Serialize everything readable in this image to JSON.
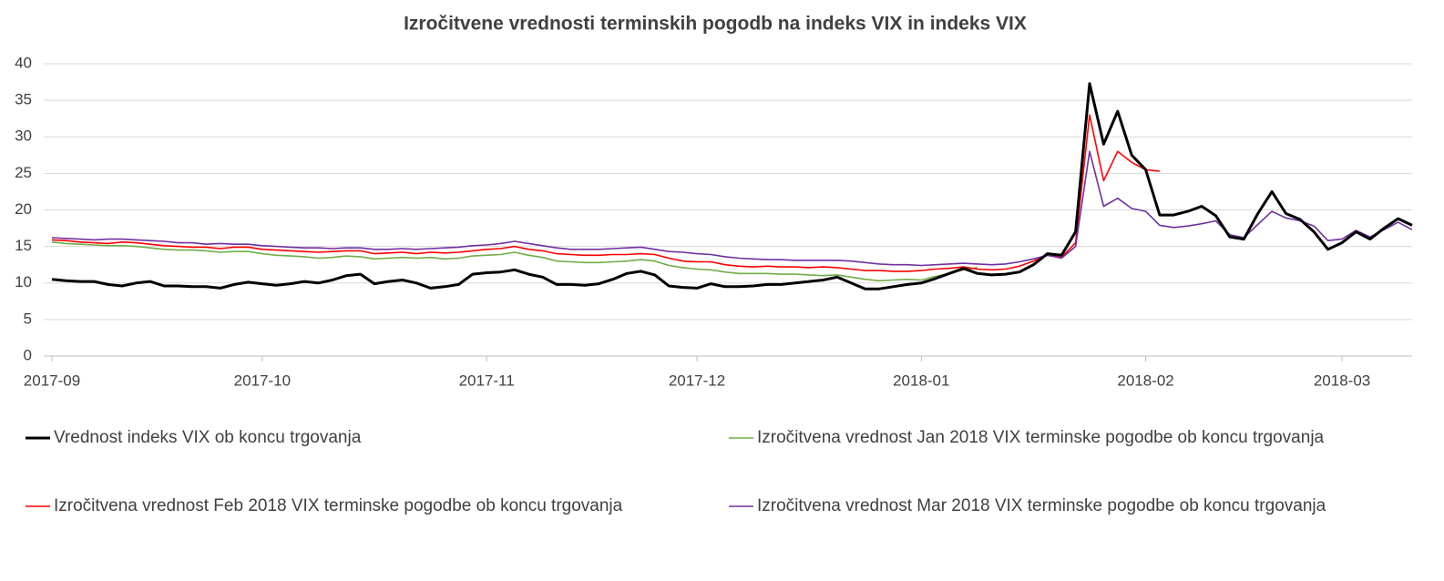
{
  "chart_data": {
    "type": "line",
    "title": "Izročitvene vrednosti terminskih pogodb na indeks VIX in indeks VIX",
    "categories": [
      "2017-09",
      null,
      null,
      null,
      null,
      null,
      null,
      null,
      null,
      null,
      null,
      null,
      null,
      null,
      null,
      "2017-10",
      null,
      null,
      null,
      null,
      null,
      null,
      null,
      null,
      null,
      null,
      null,
      null,
      null,
      null,
      null,
      "2017-11",
      null,
      null,
      null,
      null,
      null,
      null,
      null,
      null,
      null,
      null,
      null,
      null,
      null,
      null,
      "2017-12",
      null,
      null,
      null,
      null,
      null,
      null,
      null,
      null,
      null,
      null,
      null,
      null,
      null,
      null,
      null,
      "2018-01",
      null,
      null,
      null,
      null,
      null,
      null,
      null,
      null,
      null,
      null,
      null,
      null,
      null,
      null,
      null,
      "2018-02",
      null,
      null,
      null,
      null,
      null,
      null,
      null,
      null,
      null,
      null,
      null,
      null,
      null,
      "2018-03",
      null,
      null,
      null,
      null,
      null
    ],
    "ylim": [
      0,
      40
    ],
    "yticks": [
      0,
      5,
      10,
      15,
      20,
      25,
      30,
      35,
      40
    ],
    "grid": true,
    "legend": "bottom",
    "series": [
      {
        "name": "Vrednost indeks VIX ob koncu trgovanja",
        "color": "#000000",
        "values": [
          10.5,
          10.3,
          10.2,
          10.2,
          9.8,
          9.6,
          10.0,
          10.2,
          9.6,
          9.6,
          9.5,
          9.5,
          9.3,
          9.8,
          10.1,
          9.9,
          9.7,
          9.9,
          10.2,
          10.0,
          10.4,
          11.0,
          11.2,
          9.9,
          10.2,
          10.4,
          10.0,
          9.3,
          9.5,
          9.8,
          11.2,
          11.4,
          11.5,
          11.8,
          11.2,
          10.8,
          9.8,
          9.8,
          9.7,
          9.9,
          10.5,
          11.3,
          11.6,
          11.1,
          9.6,
          9.4,
          9.3,
          9.9,
          9.5,
          9.5,
          9.6,
          9.8,
          9.8,
          10.0,
          10.2,
          10.4,
          10.8,
          10.0,
          9.2,
          9.2,
          9.5,
          9.8,
          10.0,
          10.6,
          11.3,
          12.0,
          11.3,
          11.1,
          11.2,
          11.5,
          12.5,
          14.0,
          13.8,
          17.0,
          37.3,
          29.0,
          33.5,
          27.5,
          25.5,
          19.3,
          19.3,
          19.8,
          20.5,
          19.2,
          16.3,
          16.0,
          19.5,
          22.5,
          19.5,
          18.7,
          17.0,
          14.6,
          15.5,
          17.0,
          16.0,
          17.5,
          18.8,
          17.9
        ]
      },
      {
        "name": "Izročitvena vrednost Jan 2018 VIX terminske pogodbe ob koncu trgovanja",
        "color": "#70ad47",
        "values": [
          15.6,
          15.4,
          15.3,
          15.2,
          15.1,
          15.1,
          15.0,
          14.8,
          14.6,
          14.5,
          14.5,
          14.4,
          14.2,
          14.3,
          14.3,
          14.0,
          13.8,
          13.7,
          13.6,
          13.4,
          13.5,
          13.7,
          13.6,
          13.3,
          13.4,
          13.5,
          13.4,
          13.5,
          13.3,
          13.4,
          13.7,
          13.8,
          13.9,
          14.2,
          13.8,
          13.5,
          13.0,
          12.9,
          12.8,
          12.8,
          12.9,
          13.0,
          13.2,
          13.0,
          12.4,
          12.1,
          11.9,
          11.8,
          11.5,
          11.3,
          11.3,
          11.3,
          11.2,
          11.2,
          11.1,
          11.0,
          11.1,
          10.8,
          10.5,
          10.3,
          10.4,
          10.5,
          10.4,
          10.9,
          11.3,
          11.8,
          12.1,
          null,
          null,
          null,
          null,
          null,
          null,
          null,
          null,
          null,
          null,
          null,
          null,
          null,
          null,
          null,
          null,
          null,
          null,
          null,
          null,
          null,
          null,
          null,
          null,
          null,
          null,
          null,
          null,
          null,
          null,
          null
        ]
      },
      {
        "name": "Izročitvena vrednost Feb 2018 VIX terminske pogodbe ob koncu trgovanja",
        "color": "#ff0000",
        "values": [
          15.9,
          15.8,
          15.6,
          15.5,
          15.4,
          15.6,
          15.5,
          15.3,
          15.1,
          15.0,
          14.9,
          14.9,
          14.7,
          14.9,
          14.9,
          14.6,
          14.5,
          14.4,
          14.3,
          14.2,
          14.3,
          14.4,
          14.4,
          14.0,
          14.1,
          14.2,
          14.0,
          14.2,
          14.1,
          14.2,
          14.4,
          14.6,
          14.7,
          15.0,
          14.6,
          14.4,
          14.0,
          13.9,
          13.8,
          13.8,
          13.9,
          13.9,
          14.0,
          13.9,
          13.4,
          13.0,
          12.9,
          12.9,
          12.5,
          12.3,
          12.2,
          12.3,
          12.2,
          12.2,
          12.1,
          12.2,
          12.1,
          11.9,
          11.7,
          11.7,
          11.6,
          11.6,
          11.7,
          11.9,
          12.0,
          12.2,
          11.9,
          11.8,
          11.9,
          12.3,
          13.0,
          13.8,
          13.5,
          15.5,
          33.0,
          24.0,
          28.0,
          26.5,
          25.5,
          25.3,
          null,
          null,
          null,
          null,
          null,
          null,
          null,
          null,
          null,
          null,
          null,
          null,
          null,
          null,
          null,
          null,
          null,
          null
        ]
      },
      {
        "name": "Izročitvena vrednost Mar 2018 VIX terminske pogodbe ob koncu trgovanja",
        "color": "#7030a0",
        "values": [
          16.2,
          16.1,
          16.0,
          15.9,
          16.0,
          16.0,
          15.9,
          15.8,
          15.7,
          15.5,
          15.5,
          15.3,
          15.4,
          15.3,
          15.3,
          15.1,
          15.0,
          14.9,
          14.8,
          14.8,
          14.7,
          14.8,
          14.8,
          14.6,
          14.6,
          14.7,
          14.6,
          14.7,
          14.8,
          14.9,
          15.1,
          15.2,
          15.4,
          15.7,
          15.4,
          15.1,
          14.8,
          14.6,
          14.6,
          14.6,
          14.7,
          14.8,
          14.9,
          14.6,
          14.3,
          14.2,
          14.0,
          13.9,
          13.6,
          13.4,
          13.3,
          13.2,
          13.2,
          13.1,
          13.1,
          13.1,
          13.1,
          13.0,
          12.8,
          12.6,
          12.5,
          12.5,
          12.4,
          12.5,
          12.6,
          12.7,
          12.6,
          12.5,
          12.6,
          12.9,
          13.3,
          13.8,
          13.4,
          15.0,
          28.0,
          20.5,
          21.6,
          20.2,
          19.8,
          17.9,
          17.6,
          17.8,
          18.1,
          18.5,
          16.6,
          16.2,
          18.0,
          19.8,
          18.9,
          18.5,
          17.8,
          15.8,
          16.0,
          17.2,
          16.3,
          17.3,
          18.3,
          17.3
        ]
      }
    ]
  }
}
